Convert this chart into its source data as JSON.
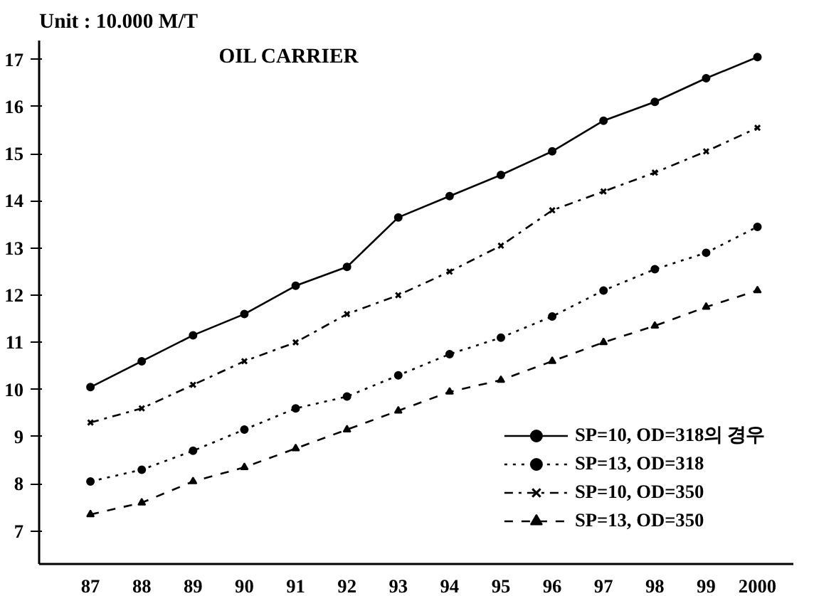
{
  "chart_data": {
    "type": "line",
    "title": "OIL CARRIER",
    "annotations": [
      "Unit :  10.000  M/T"
    ],
    "categories": [
      "87",
      "88",
      "89",
      "90",
      "91",
      "92",
      "93",
      "94",
      "95",
      "96",
      "97",
      "98",
      "99",
      "2000"
    ],
    "series": [
      {
        "name": "SP=10, OD=318의 경우",
        "color": "#000000",
        "marker": "circle",
        "line_style": "solid",
        "values": [
          10.05,
          10.6,
          11.15,
          11.6,
          12.2,
          12.6,
          13.65,
          14.1,
          14.55,
          15.05,
          15.7,
          16.1,
          16.6,
          17.05
        ]
      },
      {
        "name": "SP=13, OD=318",
        "color": "#000000",
        "marker": "circle",
        "line_style": "dotted",
        "values": [
          8.05,
          8.3,
          8.7,
          9.15,
          9.6,
          9.85,
          10.3,
          10.75,
          11.1,
          11.55,
          12.1,
          12.55,
          12.9,
          13.45
        ]
      },
      {
        "name": "SP=10, OD=350",
        "color": "#000000",
        "marker": "cross",
        "line_style": "dashdot",
        "values": [
          9.3,
          9.6,
          10.1,
          10.6,
          11.0,
          11.6,
          12.0,
          12.5,
          13.05,
          13.8,
          14.2,
          14.6,
          15.05,
          15.55
        ]
      },
      {
        "name": "SP=13, OD=350",
        "color": "#000000",
        "marker": "triangle",
        "line_style": "dashed",
        "values": [
          7.35,
          7.6,
          8.05,
          8.35,
          8.75,
          9.15,
          9.55,
          9.95,
          10.2,
          10.6,
          11.0,
          11.35,
          11.75,
          12.1
        ]
      }
    ],
    "ylim": [
      6.3,
      17.4
    ],
    "yticks": [
      7,
      8,
      9,
      10,
      11,
      12,
      13,
      14,
      15,
      16,
      17
    ],
    "grid": false,
    "legend": "bottom right"
  }
}
